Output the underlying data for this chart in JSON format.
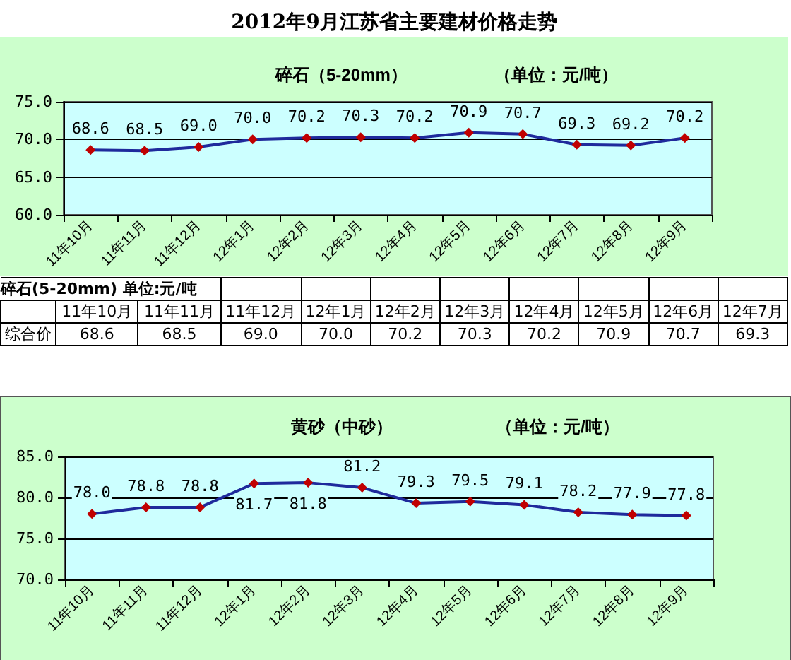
{
  "chart_data": [
    {
      "type": "line",
      "title": "2012年9月江苏省主要建材价格走势",
      "subtitle": "碎石（5-20mm）",
      "annotations": [
        "（单位：元/吨）"
      ],
      "categories": [
        "11年10月",
        "11年11月",
        "11年12月",
        "12年1月",
        "12年2月",
        "12年3月",
        "12年4月",
        "12年5月",
        "12年6月",
        "12年7月",
        "12年8月",
        "12年9月"
      ],
      "series": [
        {
          "color": "#1f2a9c",
          "values": [
            68.6,
            68.5,
            69.0,
            70.0,
            70.2,
            70.3,
            70.2,
            70.9,
            70.7,
            69.3,
            69.2,
            70.2
          ],
          "value_labels": [
            "68.6",
            "68.5",
            "69.0",
            "70.0",
            "70.2",
            "70.3",
            "70.2",
            "70.9",
            "70.7",
            "69.3",
            "69.2",
            "70.2"
          ]
        }
      ],
      "ylim": [
        60,
        75
      ],
      "yticks": [
        {
          "value": 60,
          "label": "60.0"
        },
        {
          "value": 65,
          "label": "65.0"
        },
        {
          "value": 70,
          "label": "70.0"
        },
        {
          "value": 75,
          "label": "75.0"
        }
      ],
      "grid": "y",
      "marker": "diamond",
      "line_style": "solid"
    },
    {
      "type": "other",
      "title": "碎石(5-20mm) 单位:元/吨",
      "ylabel": "综合价",
      "categories": [
        "11年10月",
        "11年11月",
        "11年12月",
        "12年1月",
        "12年2月",
        "12年3月",
        "12年4月",
        "12年5月",
        "12年6月",
        "12年7月"
      ],
      "values": [
        68.6,
        68.5,
        69.0,
        70.0,
        70.2,
        70.3,
        70.2,
        70.9,
        70.7,
        69.3
      ],
      "value_labels": [
        "68.6",
        "68.5",
        "69.0",
        "70.0",
        "70.2",
        "70.3",
        "70.2",
        "70.9",
        "70.7",
        "69.3"
      ]
    },
    {
      "type": "line",
      "title": "黄砂（中砂）",
      "annotations": [
        "（单位：元/吨）"
      ],
      "categories": [
        "11年10月",
        "11年11月",
        "11年12月",
        "12年1月",
        "12年2月",
        "12年3月",
        "12年4月",
        "12年5月",
        "12年6月",
        "12年7月",
        "12年8月",
        "12年9月"
      ],
      "series": [
        {
          "color": "#1f2a9c",
          "values": [
            78.0,
            78.8,
            78.8,
            81.7,
            81.8,
            81.2,
            79.3,
            79.5,
            79.1,
            78.2,
            77.9,
            77.8
          ],
          "value_labels": [
            "78.0",
            "78.8",
            "78.8",
            "81.7",
            "81.8",
            "81.2",
            "79.3",
            "79.5",
            "79.1",
            "78.2",
            "77.9",
            "77.8"
          ]
        }
      ],
      "ylim": [
        70,
        85
      ],
      "yticks": [
        {
          "value": 70,
          "label": "70.0"
        },
        {
          "value": 75,
          "label": "75.0"
        },
        {
          "value": 80,
          "label": "80.0"
        },
        {
          "value": 85,
          "label": "85.0"
        }
      ],
      "grid": "y",
      "marker": "diamond",
      "line_style": "solid"
    }
  ]
}
